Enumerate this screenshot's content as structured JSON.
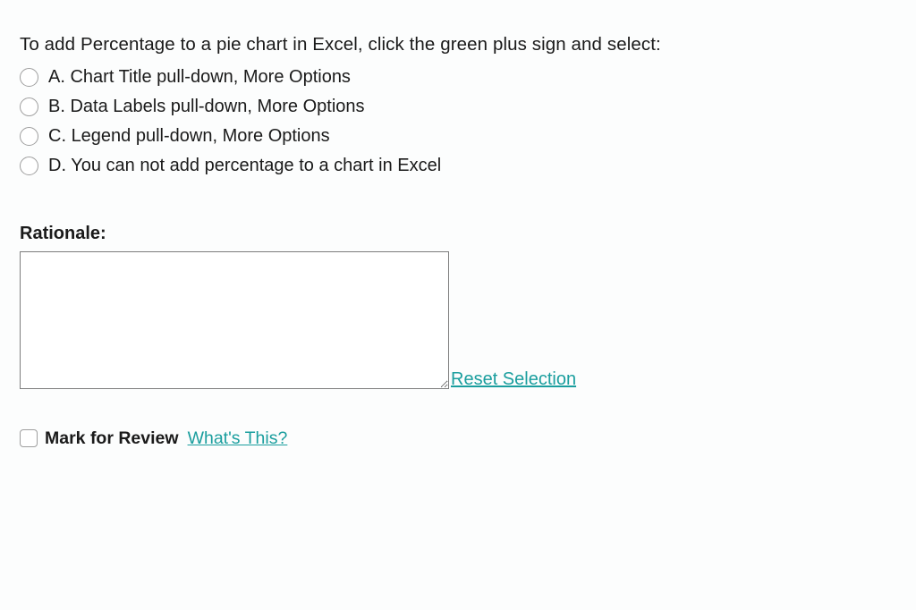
{
  "question": {
    "prompt": "To add Percentage to a pie chart in Excel, click the green plus sign and select:",
    "options": [
      {
        "letter": "A.",
        "text": "Chart Title pull-down, More Options"
      },
      {
        "letter": "B.",
        "text": "Data Labels pull-down, More Options"
      },
      {
        "letter": "C.",
        "text": "Legend pull-down, More Options"
      },
      {
        "letter": "D.",
        "text": "You can not add percentage to a chart in Excel"
      }
    ]
  },
  "rationale": {
    "label": "Rationale:",
    "value": ""
  },
  "links": {
    "reset": "Reset Selection",
    "whats_this": "What's This?"
  },
  "review": {
    "label": "Mark for Review",
    "checked": false
  },
  "colors": {
    "link": "#1a9e9e",
    "text": "#1a1a1a",
    "border": "#9e9e9e",
    "background": "#fcfdfd"
  }
}
